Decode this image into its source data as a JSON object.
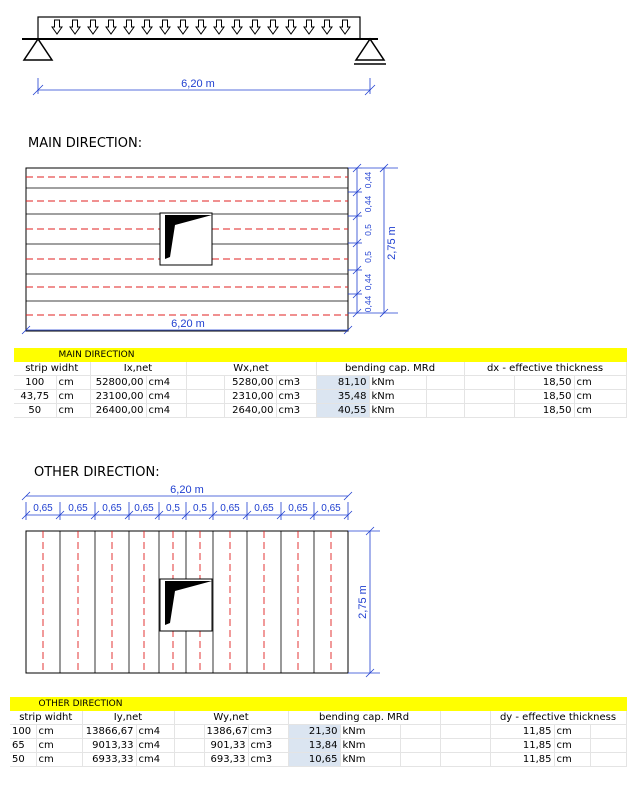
{
  "beam": {
    "span_label": "6,20 m"
  },
  "main_direction": {
    "heading": "MAIN DIRECTION:",
    "plan": {
      "length_label": "6,20 m",
      "height_label": "2,75 m",
      "strip_labels": [
        "0,44",
        "0,44",
        "0,5",
        "0,5",
        "0,44",
        "0,44"
      ]
    },
    "table": {
      "title": "MAIN DIRECTION",
      "headers": [
        "strip widht",
        "Ix,net",
        "Wx,net",
        "bending cap. MRd",
        "dx - effective thickness"
      ],
      "rows": [
        {
          "width": "100",
          "width_unit": "cm",
          "inertia": "52800,00",
          "inertia_unit": "cm4",
          "modulus": "5280,00",
          "modulus_unit": "cm3",
          "mrd": "81,10",
          "mrd_unit": "kNm",
          "thickness": "18,50",
          "thickness_unit": "cm"
        },
        {
          "width": "43,75",
          "width_unit": "cm",
          "inertia": "23100,00",
          "inertia_unit": "cm4",
          "modulus": "2310,00",
          "modulus_unit": "cm3",
          "mrd": "35,48",
          "mrd_unit": "kNm",
          "thickness": "18,50",
          "thickness_unit": "cm"
        },
        {
          "width": "50",
          "width_unit": "cm",
          "inertia": "26400,00",
          "inertia_unit": "cm4",
          "modulus": "2640,00",
          "modulus_unit": "cm3",
          "mrd": "40,55",
          "mrd_unit": "kNm",
          "thickness": "18,50",
          "thickness_unit": "cm"
        }
      ]
    }
  },
  "other_direction": {
    "heading": "OTHER DIRECTION:",
    "plan": {
      "length_label": "6,20 m",
      "height_label": "2,75 m",
      "strip_labels": [
        "0,65",
        "0,65",
        "0,65",
        "0,65",
        "0,5",
        "0,5",
        "0,65",
        "0,65",
        "0,65",
        "0,65"
      ]
    },
    "table": {
      "title": "OTHER DIRECTION",
      "headers": [
        "strip widht",
        "Iy,net",
        "Wy,net",
        "bending cap. MRd",
        "dy - effective thickness"
      ],
      "rows": [
        {
          "width": "100",
          "width_unit": "cm",
          "inertia": "13866,67",
          "inertia_unit": "cm4",
          "modulus": "1386,67",
          "modulus_unit": "cm3",
          "mrd": "21,30",
          "mrd_unit": "kNm",
          "thickness": "11,85",
          "thickness_unit": "cm"
        },
        {
          "width": "65",
          "width_unit": "cm",
          "inertia": "9013,33",
          "inertia_unit": "cm4",
          "modulus": "901,33",
          "modulus_unit": "cm3",
          "mrd": "13,84",
          "mrd_unit": "kNm",
          "thickness": "11,85",
          "thickness_unit": "cm"
        },
        {
          "width": "50",
          "width_unit": "cm",
          "inertia": "6933,33",
          "inertia_unit": "cm4",
          "modulus": "693,33",
          "modulus_unit": "cm3",
          "mrd": "10,65",
          "mrd_unit": "kNm",
          "thickness": "11,85",
          "thickness_unit": "cm"
        }
      ]
    }
  },
  "colors": {
    "dimension": "#1f3fd0",
    "strip_line": "#e02020",
    "table_title_bar": "#ffff00",
    "mrd_cell": "#dbe5f1"
  }
}
